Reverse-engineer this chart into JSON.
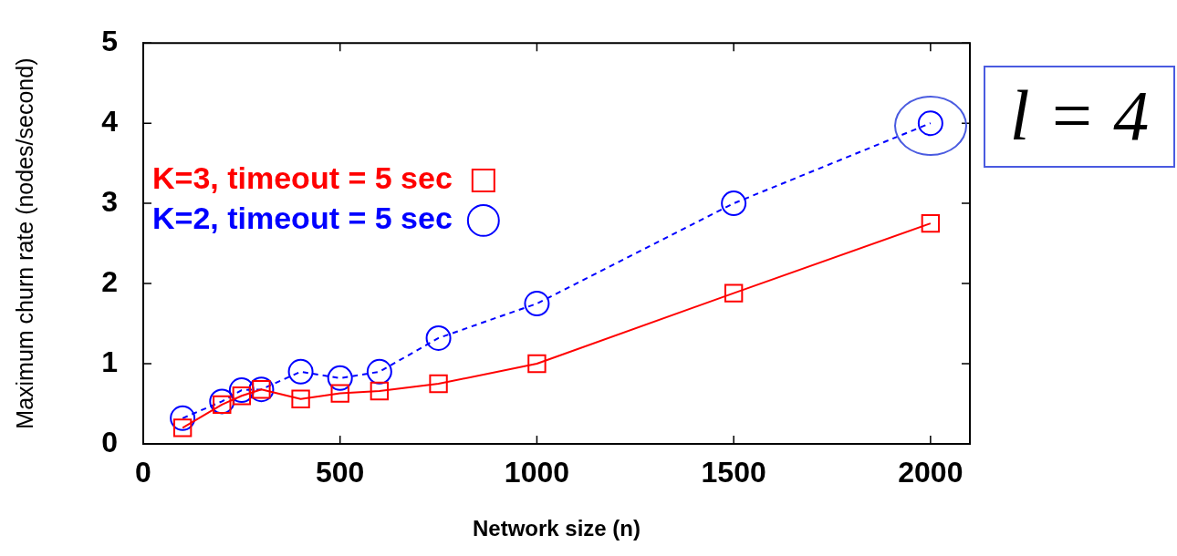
{
  "chart_data": {
    "type": "line",
    "xlabel": "Network size (n)",
    "ylabel": "Maximum churn rate (nodes/second)",
    "x": [
      100,
      200,
      250,
      300,
      400,
      500,
      600,
      750,
      1000,
      1500,
      2000
    ],
    "series": [
      {
        "name": "K=3, timeout = 5 sec",
        "color": "#ff0000",
        "marker": "square",
        "line_style": "solid",
        "values": [
          0.2,
          0.49,
          0.6,
          0.68,
          0.56,
          0.63,
          0.66,
          0.75,
          1.0,
          1.88,
          2.75
        ]
      },
      {
        "name": "K=2, timeout = 5 sec",
        "color": "#0000ff",
        "marker": "circle",
        "line_style": "dashed",
        "values": [
          0.32,
          0.53,
          0.67,
          0.68,
          0.9,
          0.82,
          0.9,
          1.32,
          1.75,
          3.0,
          4.0
        ]
      }
    ],
    "xlim": [
      0,
      2100
    ],
    "xticks": [
      0,
      500,
      1000,
      1500,
      2000
    ],
    "ylim": [
      0,
      5
    ],
    "yticks": [
      0,
      1,
      2,
      3,
      4,
      5
    ],
    "grid": false,
    "legend": "top",
    "annotations": [
      "l = 4"
    ]
  }
}
